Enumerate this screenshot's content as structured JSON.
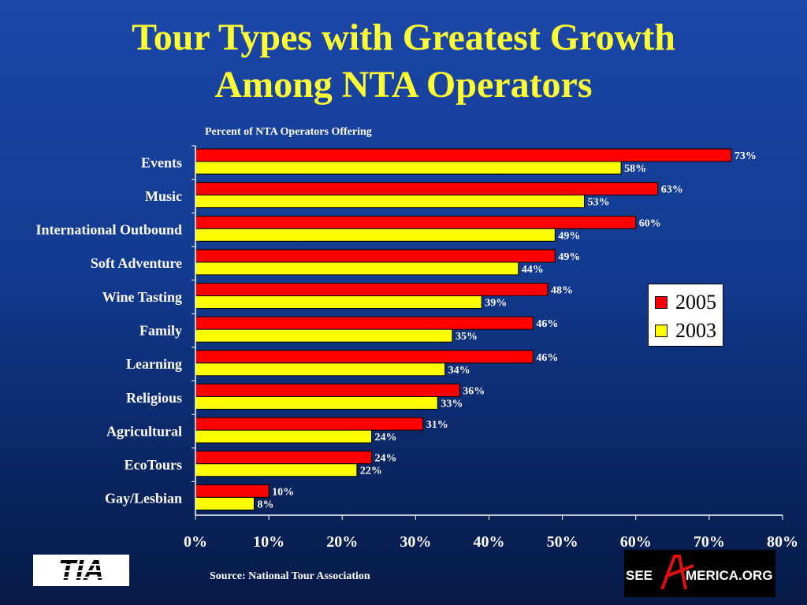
{
  "title": {
    "line1": "Tour Types with Greatest Growth",
    "line2": "Among NTA Operators"
  },
  "source": "Source:  National Tour Association",
  "logos": {
    "tia_text": "TIA",
    "see_america_left": "SEE",
    "see_america_right": "MERICA.ORG"
  },
  "colors": {
    "series_2005": "#ff0000",
    "series_2003": "#ffff00",
    "title": "#ffff33"
  },
  "chart_data": {
    "type": "bar",
    "orientation": "horizontal",
    "title": "",
    "subtitle": "Percent of NTA Operators Offering",
    "categories": [
      "Events",
      "Music",
      "International Outbound",
      "Soft Adventure",
      "Wine Tasting",
      "Family",
      "Learning",
      "Religious",
      "Agricultural",
      "EcoTours",
      "Gay/Lesbian"
    ],
    "series": [
      {
        "name": "2005",
        "color": "#ff0000",
        "values": [
          73,
          63,
          60,
          49,
          48,
          46,
          46,
          36,
          31,
          24,
          10
        ]
      },
      {
        "name": "2003",
        "color": "#ffff00",
        "values": [
          58,
          53,
          49,
          44,
          39,
          35,
          34,
          33,
          24,
          22,
          8
        ]
      }
    ],
    "value_suffix": "%",
    "xlim": [
      0,
      80
    ],
    "x_ticks": [
      "0%",
      "10%",
      "20%",
      "30%",
      "40%",
      "50%",
      "60%",
      "70%",
      "80%"
    ],
    "x_tick_values": [
      0,
      10,
      20,
      30,
      40,
      50,
      60,
      70,
      80
    ],
    "xlabel": "",
    "ylabel": "",
    "grid": false,
    "legend_position": "right"
  }
}
